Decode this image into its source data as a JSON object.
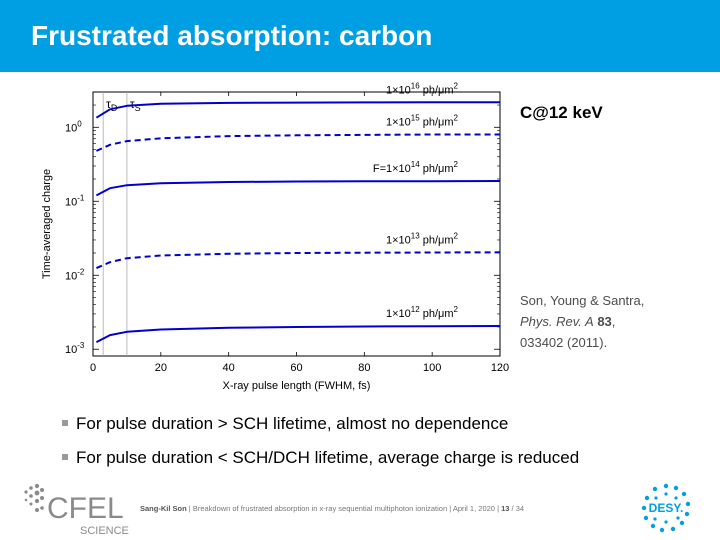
{
  "header": {
    "title": "Frustrated absorption: carbon",
    "color": "#009fe3"
  },
  "side_title": "C@12 keV",
  "reference": {
    "authors": "Son, Young & Santra,",
    "journal": "Phys. Rev. A",
    "volume": "83",
    "comma": ",",
    "article": "033402 (2011)."
  },
  "bullets": [
    "For pulse duration > SCH lifetime, almost no dependence",
    "For pulse duration < SCH/DCH lifetime, average charge is reduced"
  ],
  "footer": {
    "author": "Sang-Kil Son",
    "separator": "|",
    "talk": "Breakdown of frustrated absorption in x-ray sequential multiphoton ionization",
    "date": "April 1, 2020",
    "page": "13",
    "total": "/ 34"
  },
  "logos": {
    "cfel_main": "CFEL",
    "cfel_sub": "SCIENCE",
    "desy": "DESY."
  },
  "chart_data": {
    "type": "line",
    "xlabel": "X-ray pulse length (FWHM, fs)",
    "ylabel": "Time-averaged charge",
    "xlim": [
      0,
      120
    ],
    "ylim": [
      0.00081,
      3.0
    ],
    "yscale": "log",
    "xticks": [
      0,
      20,
      40,
      60,
      80,
      100,
      120
    ],
    "yticks": [
      {
        "value": 1,
        "base": "10",
        "exp": "0"
      },
      {
        "value": 0.1,
        "base": "10",
        "exp": "-1"
      },
      {
        "value": 0.01,
        "base": "10",
        "exp": "-2"
      },
      {
        "value": 0.001,
        "base": "10",
        "exp": "-3"
      }
    ],
    "vlines": [
      {
        "x": 3,
        "label": "τ",
        "sub": "D"
      },
      {
        "x": 10,
        "label": "τ",
        "sub": "S"
      }
    ],
    "color": "#0000cc",
    "series": [
      {
        "name": "1×10¹⁶ ph/μm²",
        "pre": "1×10",
        "exp": "16",
        "unit": " ph/μm",
        "uexp": "2",
        "style": "solid",
        "x": [
          1,
          5,
          10,
          20,
          40,
          60,
          80,
          100,
          120
        ],
        "y": [
          1.35,
          1.75,
          1.95,
          2.08,
          2.14,
          2.16,
          2.17,
          2.18,
          2.18
        ]
      },
      {
        "name": "1×10¹⁵ ph/μm²",
        "pre": "1×10",
        "exp": "15",
        "unit": " ph/μm",
        "uexp": "2",
        "style": "dashed",
        "x": [
          1,
          5,
          10,
          20,
          40,
          60,
          80,
          100,
          120
        ],
        "y": [
          0.48,
          0.58,
          0.65,
          0.71,
          0.76,
          0.78,
          0.79,
          0.8,
          0.8
        ]
      },
      {
        "name": "F=1×10¹⁴ ph/μm²",
        "pre": "F=1×10",
        "exp": "14",
        "unit": " ph/μm",
        "uexp": "2",
        "style": "solid",
        "x": [
          1,
          5,
          10,
          20,
          40,
          60,
          80,
          100,
          120
        ],
        "y": [
          0.12,
          0.15,
          0.165,
          0.175,
          0.182,
          0.185,
          0.186,
          0.187,
          0.188
        ]
      },
      {
        "name": "1×10¹³ ph/μm²",
        "pre": "1×10",
        "exp": "13",
        "unit": " ph/μm",
        "uexp": "2",
        "style": "dashed",
        "x": [
          1,
          5,
          10,
          20,
          40,
          60,
          80,
          100,
          120
        ],
        "y": [
          0.0125,
          0.015,
          0.017,
          0.0185,
          0.0195,
          0.02,
          0.0202,
          0.0203,
          0.0204
        ]
      },
      {
        "name": "1×10¹² ph/μm²",
        "pre": "1×10",
        "exp": "12",
        "unit": " ph/μm",
        "uexp": "2",
        "style": "solid",
        "x": [
          1,
          5,
          10,
          20,
          40,
          60,
          80,
          100,
          120
        ],
        "y": [
          0.00125,
          0.00155,
          0.00172,
          0.00185,
          0.00195,
          0.002,
          0.00203,
          0.00205,
          0.00206
        ]
      }
    ]
  }
}
